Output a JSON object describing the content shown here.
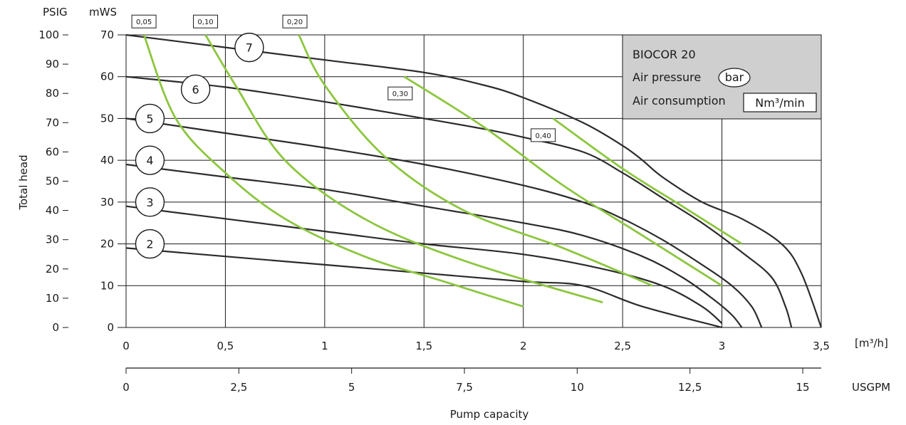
{
  "chart_data": {
    "type": "line",
    "subtitle": "BIOCOR 20",
    "left_axis_unit": "PSIG",
    "right_axis_unit": "mWS",
    "ylabel": "Total head",
    "xlabel": "Pump capacity",
    "x_unit": "[m³/h]",
    "x2_unit": "USGPM",
    "xlim": [
      0,
      3.5
    ],
    "ylim": [
      0,
      70
    ],
    "psig_lim": [
      0,
      100
    ],
    "usgpm_lim": [
      0,
      15.41
    ],
    "grid": true,
    "x_ticks": [
      "0",
      "0,5",
      "1",
      "1,5",
      "2",
      "2,5",
      "3",
      "3,5"
    ],
    "x_tick_values": [
      0,
      0.5,
      1,
      1.5,
      2,
      2.5,
      3,
      3.5
    ],
    "y_ticks": [
      "0",
      "10",
      "20",
      "30",
      "40",
      "50",
      "60",
      "70"
    ],
    "y_tick_values": [
      0,
      10,
      20,
      30,
      40,
      50,
      60,
      70
    ],
    "psig_ticks": [
      "0",
      "10",
      "20",
      "30",
      "40",
      "50",
      "60",
      "70",
      "80",
      "90",
      "100"
    ],
    "psig_tick_values": [
      0,
      10,
      20,
      30,
      40,
      50,
      60,
      70,
      80,
      90,
      100
    ],
    "usgpm_ticks": [
      "0",
      "2,5",
      "5",
      "7,5",
      "10",
      "12,5",
      "15"
    ],
    "usgpm_tick_values": [
      0,
      2.5,
      5,
      7.5,
      10,
      12.5,
      15
    ],
    "legend": {
      "title": "BIOCOR 20",
      "air_pressure_label": "Air pressure",
      "air_pressure_unit": "bar",
      "air_consumption_label": "Air consumption",
      "air_consumption_unit": "Nm³/min",
      "position": "top-right"
    },
    "series": [
      {
        "name": "7",
        "label_at": [
          0.62,
          67
        ],
        "points": [
          [
            0,
            70
          ],
          [
            0.5,
            67
          ],
          [
            1,
            64
          ],
          [
            1.5,
            61
          ],
          [
            1.8,
            58
          ],
          [
            2,
            55
          ],
          [
            2.3,
            49
          ],
          [
            2.5,
            43.5
          ],
          [
            2.6,
            40
          ],
          [
            2.7,
            36
          ],
          [
            2.9,
            30
          ],
          [
            3.1,
            26
          ],
          [
            3.3,
            20
          ],
          [
            3.4,
            13
          ],
          [
            3.5,
            0
          ]
        ]
      },
      {
        "name": "6",
        "label_at": [
          0.35,
          57
        ],
        "points": [
          [
            0,
            60
          ],
          [
            0.5,
            57.5
          ],
          [
            1,
            54
          ],
          [
            1.5,
            50
          ],
          [
            1.8,
            47.5
          ],
          [
            2,
            45.5
          ],
          [
            2.3,
            42
          ],
          [
            2.5,
            37
          ],
          [
            2.7,
            31
          ],
          [
            2.9,
            25
          ],
          [
            3.1,
            18
          ],
          [
            3.25,
            12
          ],
          [
            3.32,
            5
          ],
          [
            3.35,
            0
          ]
        ]
      },
      {
        "name": "5",
        "label_at": [
          0.12,
          50
        ],
        "points": [
          [
            0,
            50
          ],
          [
            0.5,
            46.5
          ],
          [
            1,
            43
          ],
          [
            1.5,
            39
          ],
          [
            2,
            34
          ],
          [
            2.3,
            30
          ],
          [
            2.5,
            26
          ],
          [
            2.7,
            21
          ],
          [
            2.9,
            15
          ],
          [
            3.05,
            10
          ],
          [
            3.15,
            5
          ],
          [
            3.2,
            0
          ]
        ]
      },
      {
        "name": "4",
        "label_at": [
          0.12,
          40
        ],
        "points": [
          [
            0,
            39
          ],
          [
            0.5,
            36
          ],
          [
            1,
            33
          ],
          [
            1.5,
            29
          ],
          [
            2,
            25
          ],
          [
            2.3,
            22
          ],
          [
            2.6,
            17
          ],
          [
            2.8,
            12
          ],
          [
            2.95,
            7
          ],
          [
            3.05,
            3
          ],
          [
            3.1,
            0
          ]
        ]
      },
      {
        "name": "3",
        "label_at": [
          0.12,
          30
        ],
        "points": [
          [
            0,
            29
          ],
          [
            0.5,
            26
          ],
          [
            1,
            23
          ],
          [
            1.5,
            20
          ],
          [
            2,
            17.5
          ],
          [
            2.4,
            14
          ],
          [
            2.7,
            10
          ],
          [
            2.9,
            5
          ],
          [
            3,
            1
          ]
        ]
      },
      {
        "name": "2",
        "label_at": [
          0.12,
          20
        ],
        "points": [
          [
            0,
            19
          ],
          [
            0.5,
            17
          ],
          [
            1,
            15
          ],
          [
            1.5,
            13
          ],
          [
            2,
            11
          ],
          [
            2.3,
            10
          ],
          [
            2.6,
            5
          ],
          [
            3,
            0
          ]
        ]
      }
    ],
    "air_consumption_series": [
      {
        "name": "0,05",
        "label_at": [
          0.09,
          73.2
        ],
        "points": [
          [
            0.09,
            70
          ],
          [
            0.25,
            50
          ],
          [
            0.5,
            37
          ],
          [
            0.8,
            26
          ],
          [
            1.2,
            17
          ],
          [
            1.6,
            11
          ],
          [
            2,
            5
          ]
        ]
      },
      {
        "name": "0,10",
        "label_at": [
          0.4,
          73.2
        ],
        "points": [
          [
            0.4,
            70
          ],
          [
            0.55,
            58
          ],
          [
            0.8,
            40
          ],
          [
            1.2,
            26
          ],
          [
            1.7,
            16
          ],
          [
            2.4,
            6
          ]
        ]
      },
      {
        "name": "0,20",
        "label_at": [
          0.85,
          73.2
        ],
        "points": [
          [
            0.87,
            70
          ],
          [
            1,
            58
          ],
          [
            1.3,
            41
          ],
          [
            1.7,
            28
          ],
          [
            2.2,
            19
          ],
          [
            2.65,
            10
          ]
        ]
      },
      {
        "name": "0,30",
        "label_at": [
          1.38,
          56
        ],
        "points": [
          [
            1.4,
            60
          ],
          [
            1.8,
            48
          ],
          [
            2.2,
            34
          ],
          [
            2.6,
            22
          ],
          [
            3,
            10
          ]
        ]
      },
      {
        "name": "0,40",
        "label_at": [
          2.1,
          46
        ],
        "points": [
          [
            2.15,
            50
          ],
          [
            2.5,
            38
          ],
          [
            2.8,
            29
          ],
          [
            3.1,
            20
          ]
        ]
      }
    ]
  }
}
